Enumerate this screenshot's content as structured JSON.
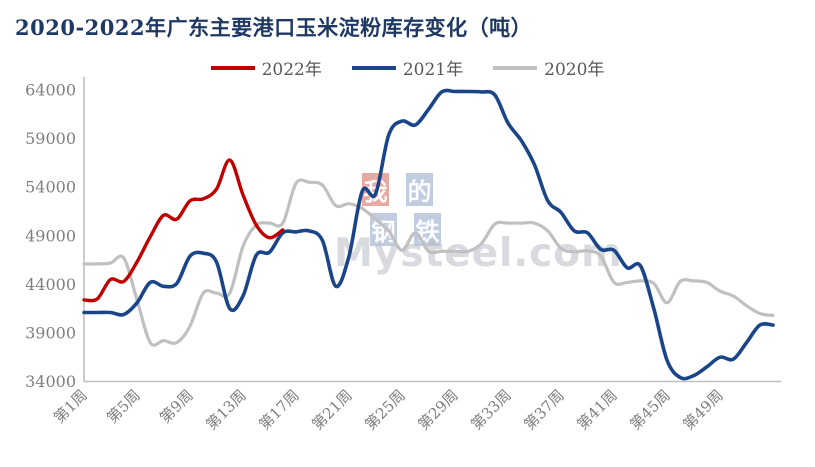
{
  "title": "2020-2022年广东主要港口玉米淀粉库存变化（吨）",
  "legend": [
    {
      "label": "2022年",
      "color": "#c00000"
    },
    {
      "label": "2021年",
      "color": "#1a4689"
    },
    {
      "label": "2020年",
      "color": "#c0c0c0"
    }
  ],
  "watermark": {
    "chars": [
      {
        "text": "我",
        "bg": "#c94232"
      },
      {
        "text": "的",
        "bg": "#5d7ab0"
      },
      {
        "text": "钢",
        "bg": "#5d7ab0"
      },
      {
        "text": "铁",
        "bg": "#5d7ab0"
      }
    ],
    "site": "Mysteel.com"
  },
  "colors": {
    "title": "#1f3864",
    "axis_line": "#bfbfbf",
    "tick_label": "#7f7f7f",
    "legend_text": "#595959"
  },
  "chart_data": {
    "type": "line",
    "title": "2020-2022年广东主要港口玉米淀粉库存变化（吨）",
    "xlabel": "",
    "ylabel": "",
    "ylim": [
      34000,
      64000
    ],
    "y_ticks": [
      34000,
      39000,
      44000,
      49000,
      54000,
      59000,
      64000
    ],
    "x_unit": "week",
    "x_ticks": [
      {
        "week": 1,
        "label": "第1周"
      },
      {
        "week": 5,
        "label": "第5周"
      },
      {
        "week": 9,
        "label": "第9周"
      },
      {
        "week": 13,
        "label": "第13周"
      },
      {
        "week": 17,
        "label": "第17周"
      },
      {
        "week": 21,
        "label": "第21周"
      },
      {
        "week": 25,
        "label": "第25周"
      },
      {
        "week": 29,
        "label": "第29周"
      },
      {
        "week": 33,
        "label": "第33周"
      },
      {
        "week": 37,
        "label": "第37周"
      },
      {
        "week": 41,
        "label": "第41周"
      },
      {
        "week": 45,
        "label": "第45周"
      },
      {
        "week": 49,
        "label": "第49周"
      }
    ],
    "grid": false,
    "legend_position": "top-center",
    "series": [
      {
        "name": "2022年",
        "color": "#c00000",
        "start_week": 1,
        "values": [
          42400,
          42500,
          44500,
          44300,
          46300,
          48900,
          51100,
          50700,
          52600,
          52800,
          53800,
          56800,
          53200,
          50100,
          48800,
          49600
        ]
      },
      {
        "name": "2021年",
        "color": "#1a4689",
        "start_week": 1,
        "values": [
          41100,
          41100,
          41100,
          40900,
          42100,
          44200,
          43800,
          44100,
          46900,
          47200,
          46300,
          41500,
          42800,
          47000,
          47300,
          49300,
          49400,
          49500,
          48500,
          43800,
          46900,
          53600,
          53300,
          59400,
          60800,
          60400,
          62000,
          63800,
          63850,
          63850,
          63800,
          63500,
          60600,
          58800,
          56300,
          52600,
          51400,
          49500,
          49300,
          47600,
          47500,
          45700,
          45900,
          41500,
          36200,
          34400,
          34600,
          35500,
          36500,
          36300,
          38000,
          39800,
          39800
        ]
      },
      {
        "name": "2020年",
        "color": "#c0c0c0",
        "start_week": 1,
        "values": [
          46100,
          46100,
          46200,
          46700,
          42400,
          38000,
          38200,
          38000,
          39700,
          43100,
          43100,
          43100,
          47900,
          50100,
          50300,
          50300,
          54400,
          54500,
          54200,
          52100,
          52300,
          51800,
          50700,
          49500,
          47500,
          49300,
          47400,
          47400,
          47400,
          47400,
          48200,
          50200,
          50300,
          50300,
          50300,
          49500,
          47700,
          47350,
          47450,
          46900,
          44200,
          44200,
          44350,
          44100,
          42100,
          44300,
          44350,
          44200,
          43300,
          42800,
          41800,
          41000,
          40800
        ]
      }
    ]
  }
}
